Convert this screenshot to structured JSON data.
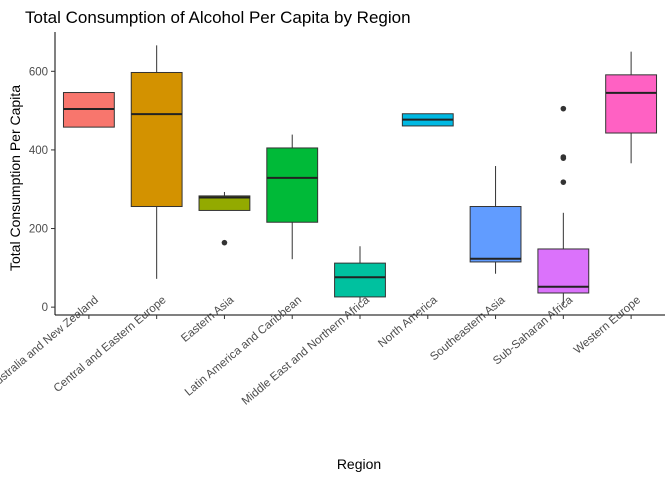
{
  "chart_data": {
    "type": "boxplot",
    "title": "Total Consumption of Alcohol Per Capita by Region",
    "xlabel": "Region",
    "ylabel": "Total Consumption Per Capita",
    "ylim": [
      -20,
      700
    ],
    "yticks": [
      0,
      200,
      400,
      600
    ],
    "grid": false,
    "categories": [
      "Australia and New Zealand",
      "Central and Eastern Europe",
      "Eastern Asia",
      "Latin America and Caribbean",
      "Middle East and Northern Africa",
      "North America",
      "Southeastern Asia",
      "Sub-Saharan Africa",
      "Western Europe"
    ],
    "boxes": [
      {
        "region": "Australia and New Zealand",
        "min": 458,
        "q1": 458,
        "median": 504,
        "q3": 546,
        "max": 546,
        "outliers": [],
        "color": "#F8766D"
      },
      {
        "region": "Central and Eastern Europe",
        "min": 72,
        "q1": 256,
        "median": 491,
        "q3": 597,
        "max": 666,
        "outliers": [],
        "color": "#D39200"
      },
      {
        "region": "Eastern Asia",
        "min": 246,
        "q1": 246,
        "median": 279,
        "q3": 283,
        "max": 293,
        "outliers": [
          164
        ],
        "color": "#93AA00"
      },
      {
        "region": "Latin America and Caribbean",
        "min": 122,
        "q1": 216,
        "median": 329,
        "q3": 405,
        "max": 439,
        "outliers": [],
        "color": "#00BA38"
      },
      {
        "region": "Middle East and Northern Africa",
        "min": 12,
        "q1": 26,
        "median": 76,
        "q3": 112,
        "max": 155,
        "outliers": [],
        "color": "#00C19F"
      },
      {
        "region": "North America",
        "min": 461,
        "q1": 461,
        "median": 477,
        "q3": 492,
        "max": 492,
        "outliers": [],
        "color": "#00B9E3"
      },
      {
        "region": "Southeastern Asia",
        "min": 85,
        "q1": 115,
        "median": 123,
        "q3": 256,
        "max": 359,
        "outliers": [],
        "color": "#619CFF"
      },
      {
        "region": "Sub-Saharan Africa",
        "min": 5,
        "q1": 36,
        "median": 52,
        "q3": 148,
        "max": 240,
        "outliers": [
          318,
          379,
          382,
          505
        ],
        "color": "#DB72FB"
      },
      {
        "region": "Western Europe",
        "min": 366,
        "q1": 443,
        "median": 545,
        "q3": 591,
        "max": 650,
        "outliers": [],
        "color": "#FF61C3"
      }
    ]
  }
}
